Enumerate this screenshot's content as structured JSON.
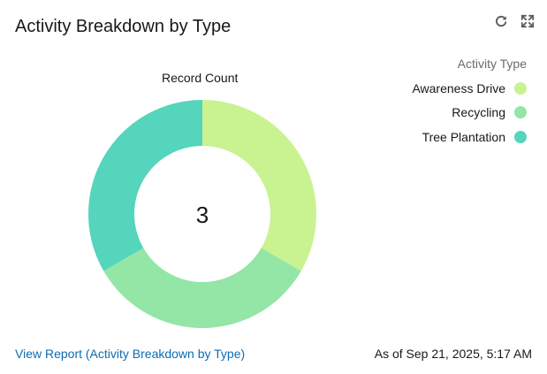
{
  "header": {
    "title": "Activity Breakdown by Type",
    "refresh_icon": "refresh-icon",
    "expand_icon": "expand-icon"
  },
  "chart_data": {
    "type": "pie",
    "subtitle": "Record Count",
    "center_label": "3",
    "legend_title": "Activity Type",
    "legend_position": "top-right",
    "categories": [
      "Awareness Drive",
      "Recycling",
      "Tree Plantation"
    ],
    "values": [
      1,
      1,
      1
    ],
    "colors": [
      "#c9f291",
      "#93e6a6",
      "#54d5bc"
    ]
  },
  "footer": {
    "report_link": "View Report (Activity Breakdown by Type)",
    "timestamp": "As of Sep 21, 2025, 5:17 AM"
  }
}
